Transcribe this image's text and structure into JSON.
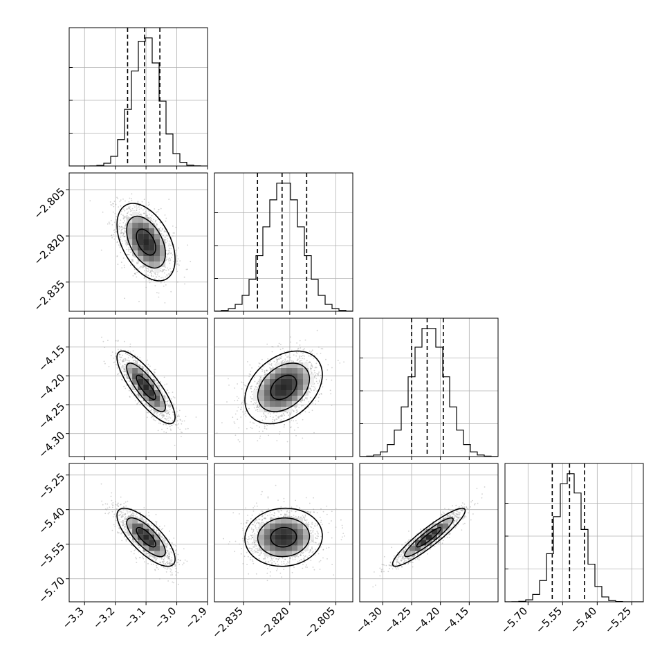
{
  "chart_data": {
    "type": "corner",
    "grid": true,
    "parameters": [
      {
        "index": 0,
        "mean": -3.1,
        "std": 0.045,
        "quantiles": [
          -3.16,
          -3.105,
          -3.055
        ],
        "range": [
          -3.35,
          -2.9
        ],
        "ticks": [
          -3.3,
          -3.2,
          -3.1,
          -3.0,
          -2.9
        ],
        "tick_labels": [
          "−3.3",
          "−3.2",
          "−3.1",
          "−3.0",
          "−2.9"
        ]
      },
      {
        "index": 1,
        "mean": -2.822,
        "std": 0.006,
        "quantiles": [
          -2.8305,
          -2.8225,
          -2.8145
        ],
        "range": [
          -2.8445,
          -2.7995
        ],
        "ticks": [
          -2.835,
          -2.82,
          -2.805
        ],
        "tick_labels": [
          "−2.835",
          "−2.820",
          "−2.805"
        ]
      },
      {
        "index": 2,
        "mean": -4.22,
        "std": 0.03,
        "quantiles": [
          -4.25,
          -4.223,
          -4.195
        ],
        "range": [
          -4.34,
          -4.1
        ],
        "ticks": [
          -4.3,
          -4.25,
          -4.2,
          -4.15
        ],
        "tick_labels": [
          "−4.30",
          "−4.25",
          "−4.20",
          "−4.15"
        ]
      },
      {
        "index": 3,
        "mean": -5.52,
        "std": 0.06,
        "quantiles": [
          -5.595,
          -5.52,
          -5.455
        ],
        "range": [
          -5.8,
          -5.2
        ],
        "ticks": [
          -5.7,
          -5.55,
          -5.4,
          -5.25
        ],
        "tick_labels": [
          "−5.70",
          "−5.55",
          "−5.40",
          "−5.25"
        ]
      }
    ],
    "correlations": [
      [
        1,
        -0.45,
        -0.82,
        -0.75
      ],
      [
        -0.45,
        1,
        0.35,
        0.05
      ],
      [
        -0.82,
        0.35,
        1,
        0.92
      ],
      [
        -0.75,
        0.05,
        0.92,
        1
      ]
    ]
  }
}
